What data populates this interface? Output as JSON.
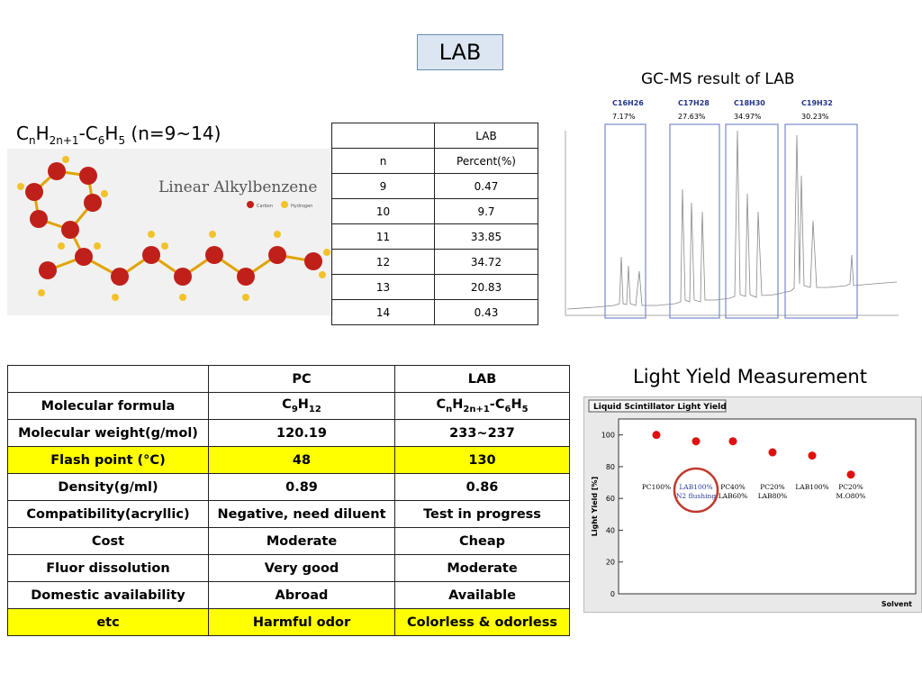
{
  "title": "LAB",
  "formula": {
    "c": "C",
    "n": "n",
    "h": "H",
    "sub2": "2n+1",
    "dash": "-C",
    "six": "6",
    "h5": "H",
    "five": "5",
    "range": " (n=9~14)"
  },
  "molecule": {
    "label": "Linear Alkylbenzene",
    "legend_carbon": "Carbon",
    "legend_hydrogen": "Hydrogen"
  },
  "composition_table": {
    "header": [
      "",
      "LAB"
    ],
    "subheader": [
      "n",
      "Percent(%)"
    ],
    "rows": [
      [
        "9",
        "0.47"
      ],
      [
        "10",
        "9.7"
      ],
      [
        "11",
        "33.85"
      ],
      [
        "12",
        "34.72"
      ],
      [
        "13",
        "20.83"
      ],
      [
        "14",
        "0.43"
      ]
    ]
  },
  "gcms": {
    "title": "GC-MS result of LAB",
    "groups": [
      {
        "formula": "C16H26",
        "percent": "7.17%"
      },
      {
        "formula": "C17H28",
        "percent": "27.63%"
      },
      {
        "formula": "C18H30",
        "percent": "34.97%"
      },
      {
        "formula": "C19H32",
        "percent": "30.23%"
      }
    ]
  },
  "comparison": {
    "headers": [
      "",
      "PC",
      "LAB"
    ],
    "rows": [
      {
        "label": "Molecular formula",
        "pc": "C9H12",
        "lab": "CnH2n+1-C6H5",
        "hl": false
      },
      {
        "label": "Molecular weight(g/mol)",
        "pc": "120.19",
        "lab": "233~237",
        "hl": false
      },
      {
        "label": "Flash point (°C)",
        "pc": "48",
        "lab": "130",
        "hl": true
      },
      {
        "label": "Density(g/ml)",
        "pc": "0.89",
        "lab": "0.86",
        "hl": false
      },
      {
        "label": "Compatibility(acryllic)",
        "pc": "Negative, need diluent",
        "lab": "Test in progress",
        "hl": false
      },
      {
        "label": "Cost",
        "pc": "Moderate",
        "lab": "Cheap",
        "hl": false
      },
      {
        "label": "Fluor dissolution",
        "pc": "Very good",
        "lab": "Moderate",
        "hl": false
      },
      {
        "label": "Domestic availability",
        "pc": "Abroad",
        "lab": "Available",
        "hl": false
      },
      {
        "label": "etc",
        "pc": "Harmful odor",
        "lab": "Colorless & odorless",
        "hl": true
      }
    ]
  },
  "light_yield": {
    "title": "Light Yield Measurement",
    "chart_data": {
      "type": "scatter",
      "title": "Liquid Scintillator Light Yield",
      "xlabel": "Solvent",
      "ylabel": "Light Yield [%]",
      "ylim": [
        0,
        110
      ],
      "yticks": [
        "0",
        "20",
        "40",
        "60",
        "80",
        "100"
      ],
      "points": [
        {
          "label": "PC100%",
          "value": 100
        },
        {
          "label": "LAB100%\nN2 flushing",
          "value": 96
        },
        {
          "label": "PC40%\nLAB60%",
          "value": 96
        },
        {
          "label": "PC20%\nLAB80%",
          "value": 89
        },
        {
          "label": "LAB100%",
          "value": 87
        },
        {
          "label": "PC20%\nM.O80%",
          "value": 75
        }
      ]
    }
  }
}
